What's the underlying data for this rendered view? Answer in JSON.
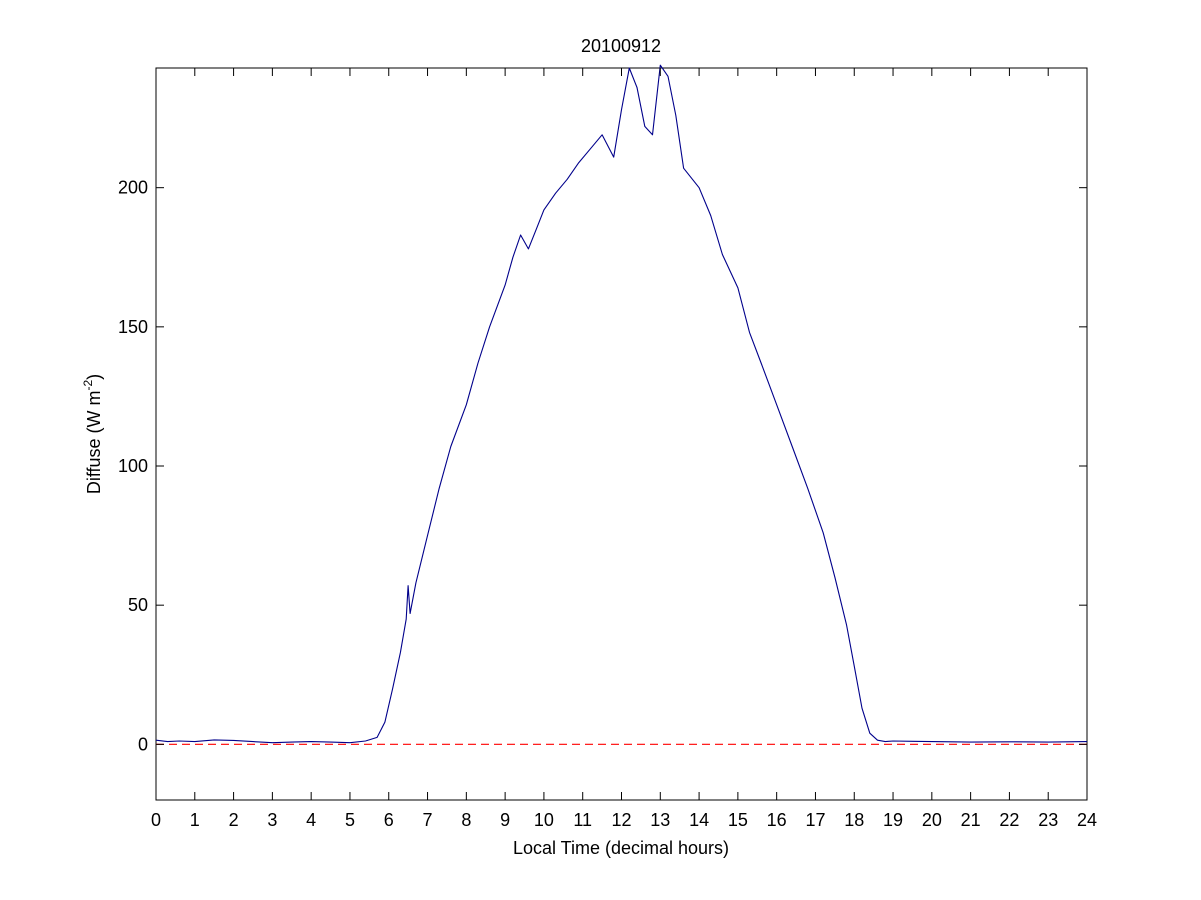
{
  "chart_data": {
    "type": "line",
    "title": "20100912",
    "xlabel": "Local Time (decimal hours)",
    "ylabel_main": "Diffuse (W m",
    "ylabel_sup": "-2",
    "ylabel_close": ")",
    "xlim": [
      0,
      24
    ],
    "ylim": [
      -20,
      243
    ],
    "xticks": [
      0,
      1,
      2,
      3,
      4,
      5,
      6,
      7,
      8,
      9,
      10,
      11,
      12,
      13,
      14,
      15,
      16,
      17,
      18,
      19,
      20,
      21,
      22,
      23,
      24
    ],
    "yticks": [
      0,
      50,
      100,
      150,
      200
    ],
    "grid": false,
    "colors": {
      "series": "#00008b",
      "zero_line": "#ff0000"
    },
    "reference_line": {
      "y": 0,
      "style": "dashed",
      "color": "#ff0000"
    },
    "series": [
      {
        "x": [
          0,
          0.3,
          0.6,
          1.0,
          1.5,
          2.0,
          2.5,
          3.0,
          3.5,
          4.0,
          4.5,
          5.0,
          5.4,
          5.7,
          5.9,
          6.1,
          6.3,
          6.45,
          6.5,
          6.55,
          6.7,
          7.0,
          7.3,
          7.6,
          8.0,
          8.3,
          8.6,
          9.0,
          9.2,
          9.4,
          9.6,
          9.8,
          10.0,
          10.3,
          10.6,
          10.9,
          11.2,
          11.5,
          11.8,
          12.0,
          12.2,
          12.4,
          12.6,
          12.8,
          13.0,
          13.2,
          13.4,
          13.6,
          14.0,
          14.3,
          14.6,
          15.0,
          15.3,
          15.6,
          16.0,
          16.4,
          16.8,
          17.2,
          17.5,
          17.8,
          18.0,
          18.2,
          18.4,
          18.6,
          18.8,
          19.0,
          19.5,
          20.0,
          21.0,
          22.0,
          23.0,
          24.0
        ],
        "y": [
          1.5,
          1.0,
          1.2,
          1.0,
          1.6,
          1.4,
          1.0,
          0.6,
          0.8,
          1.0,
          0.8,
          0.6,
          1.2,
          2.5,
          8,
          20,
          33,
          45,
          57,
          47,
          58,
          75,
          92,
          107,
          122,
          137,
          150,
          165,
          175,
          183,
          178,
          185,
          192,
          198,
          203,
          209,
          214,
          219,
          211,
          228,
          243,
          236,
          222,
          219,
          244,
          240,
          226,
          207,
          200,
          190,
          176,
          164,
          148,
          137,
          122,
          107,
          92,
          76,
          60,
          43,
          28,
          13,
          4,
          1.5,
          1.0,
          1.2,
          1.1,
          1.0,
          0.8,
          0.9,
          0.8,
          1.0
        ]
      }
    ]
  }
}
